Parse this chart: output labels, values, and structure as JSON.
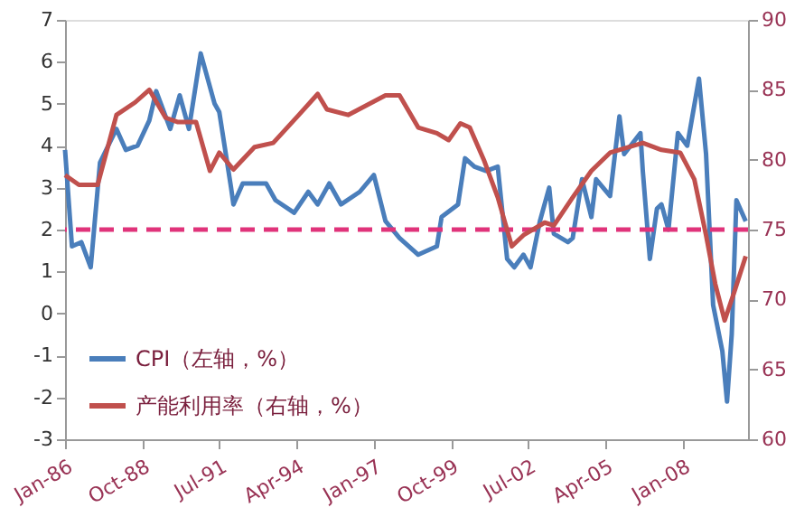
{
  "chart_data": {
    "type": "line",
    "xlim": [
      "1986-01",
      "2010-05"
    ],
    "xticks": [
      {
        "value": "1986-01",
        "label": "Jan-86"
      },
      {
        "value": "1988-10",
        "label": "Oct-88"
      },
      {
        "value": "1991-07",
        "label": "Jul-91"
      },
      {
        "value": "1994-04",
        "label": "Apr-94"
      },
      {
        "value": "1997-01",
        "label": "Jan-97"
      },
      {
        "value": "1999-10",
        "label": "Oct-99"
      },
      {
        "value": "2002-07",
        "label": "Jul-02"
      },
      {
        "value": "2005-04",
        "label": "Apr-05"
      },
      {
        "value": "2008-01",
        "label": "Jan-08"
      }
    ],
    "ylim": [
      -3,
      7
    ],
    "yticks": [
      -3,
      -2,
      -1,
      0,
      1,
      2,
      3,
      4,
      5,
      6,
      7
    ],
    "y2lim": [
      60,
      90
    ],
    "y2ticks": [
      60,
      65,
      70,
      75,
      80,
      85,
      90
    ],
    "grid": false,
    "legend": "bottom left",
    "line_style": "solid",
    "marker": "none",
    "ref_lines": [
      {
        "axis": "y",
        "value": 2,
        "color": "#e0337a",
        "line_style": "dashed"
      }
    ],
    "series": [
      {
        "name": "CPI（左轴，%）",
        "color": "#4a7ebb",
        "axis": "y",
        "x": [
          "1986-01",
          "1986-04",
          "1986-08",
          "1986-12",
          "1987-04",
          "1987-11",
          "1988-03",
          "1988-08",
          "1989-01",
          "1989-04",
          "1989-10",
          "1990-02",
          "1990-06",
          "1990-11",
          "1991-05",
          "1991-07",
          "1991-12",
          "1992-01",
          "1992-05",
          "1993-03",
          "1993-07",
          "1994-03",
          "1994-09",
          "1995-01",
          "1995-06",
          "1995-11",
          "1996-07",
          "1997-01",
          "1997-06",
          "1997-12",
          "1998-08",
          "1999-04",
          "1999-06",
          "2000-01",
          "2000-04",
          "2000-08",
          "2001-01",
          "2001-06",
          "2001-10",
          "2002-01",
          "2002-05",
          "2002-08",
          "2002-12",
          "2003-04",
          "2003-06",
          "2003-12",
          "2004-02",
          "2004-06",
          "2004-10",
          "2004-12",
          "2005-06",
          "2005-10",
          "2005-12",
          "2006-07",
          "2006-08",
          "2006-11",
          "2007-02",
          "2007-04",
          "2007-07",
          "2007-11",
          "2008-03",
          "2008-08",
          "2008-11",
          "2009-02",
          "2009-06",
          "2009-08",
          "2009-10",
          "2009-12",
          "2010-04"
        ],
        "values": [
          3.9,
          1.6,
          1.7,
          1.1,
          3.6,
          4.4,
          3.9,
          4.0,
          4.6,
          5.3,
          4.4,
          5.2,
          4.4,
          6.2,
          5.0,
          4.8,
          3.0,
          2.6,
          3.1,
          3.1,
          2.7,
          2.4,
          2.9,
          2.6,
          3.1,
          2.6,
          2.9,
          3.3,
          2.2,
          1.8,
          1.4,
          1.6,
          2.3,
          2.6,
          3.7,
          3.5,
          3.4,
          3.5,
          1.3,
          1.1,
          1.4,
          1.1,
          2.2,
          3.0,
          1.9,
          1.7,
          1.8,
          3.2,
          2.3,
          3.2,
          2.8,
          4.7,
          3.8,
          4.3,
          3.4,
          1.3,
          2.5,
          2.6,
          2.0,
          4.3,
          4.0,
          5.6,
          3.8,
          0.2,
          -0.9,
          -2.1,
          -0.5,
          2.7,
          2.2
        ]
      },
      {
        "name": "产能利用率（右轴，%）",
        "color": "#c0504d",
        "axis": "y2",
        "x": [
          "1986-01",
          "1986-07",
          "1987-03",
          "1987-11",
          "1988-07",
          "1989-01",
          "1989-08",
          "1990-01",
          "1990-09",
          "1991-03",
          "1991-07",
          "1992-01",
          "1992-10",
          "1993-06",
          "1994-05",
          "1995-01",
          "1995-05",
          "1996-02",
          "1997-06",
          "1997-12",
          "1998-08",
          "1999-04",
          "1999-09",
          "2000-02",
          "2000-06",
          "2000-12",
          "2001-06",
          "2001-12",
          "2002-05",
          "2003-02",
          "2003-06",
          "2004-02",
          "2004-10",
          "2005-06",
          "2006-08",
          "2007-04",
          "2007-12",
          "2008-06",
          "2008-11",
          "2009-03",
          "2009-07",
          "2009-11",
          "2010-04"
        ],
        "values": [
          78.9,
          78.2,
          78.2,
          83.2,
          84.1,
          85.0,
          83.0,
          82.7,
          82.7,
          79.2,
          80.5,
          79.3,
          80.9,
          81.2,
          83.2,
          84.7,
          83.6,
          83.2,
          84.6,
          84.6,
          82.3,
          81.9,
          81.4,
          82.6,
          82.3,
          80.0,
          77.3,
          73.8,
          74.6,
          75.5,
          75.3,
          77.3,
          79.2,
          80.5,
          81.2,
          80.7,
          80.5,
          78.6,
          74.6,
          71.1,
          68.5,
          70.5,
          73.1
        ]
      }
    ]
  }
}
